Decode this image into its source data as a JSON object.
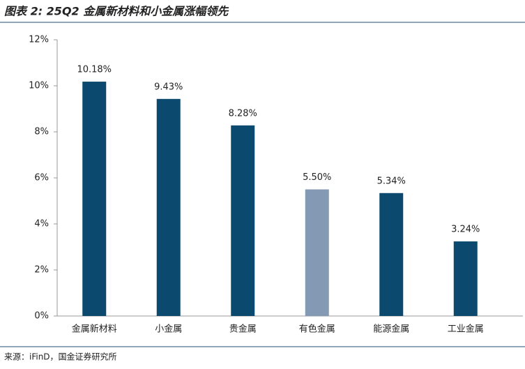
{
  "chart_data": {
    "type": "bar",
    "title": "图表 2: 25Q2 金属新材料和小金属涨幅领先",
    "source": "来源：iFinD，国金证券研究所",
    "categories": [
      "金属新材料",
      "小金属",
      "贵金属",
      "有色金属",
      "能源金属",
      "工业金属"
    ],
    "values": [
      10.18,
      9.43,
      8.28,
      5.5,
      5.34,
      3.24
    ],
    "value_labels": [
      "10.18%",
      "9.43%",
      "8.28%",
      "5.50%",
      "5.34%",
      "3.24%"
    ],
    "colors": [
      "#0b4a6e",
      "#0b4a6e",
      "#0b4a6e",
      "#8499b3",
      "#0b4a6e",
      "#0b4a6e"
    ],
    "ylim": [
      0,
      12
    ],
    "yticks": [
      {
        "value": 0,
        "label": "0%"
      },
      {
        "value": 2,
        "label": "2%"
      },
      {
        "value": 4,
        "label": "4%"
      },
      {
        "value": 6,
        "label": "6%"
      },
      {
        "value": 8,
        "label": "8%"
      },
      {
        "value": 10,
        "label": "10%"
      },
      {
        "value": 12,
        "label": "12%"
      }
    ],
    "grid": false
  }
}
